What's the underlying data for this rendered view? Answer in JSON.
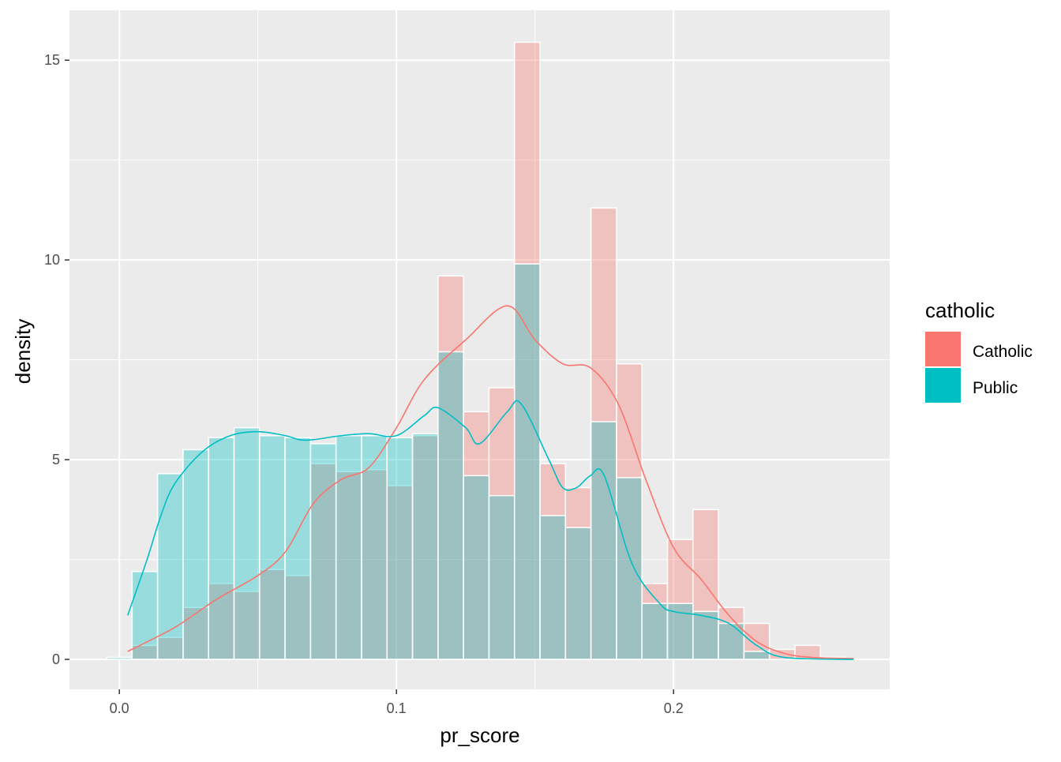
{
  "chart_data": {
    "type": "histogram",
    "xlabel": "pr_score",
    "ylabel": "density",
    "xlim": [
      -0.018,
      0.278
    ],
    "ylim": [
      -0.75,
      16.25
    ],
    "x_ticks": [
      0.0,
      0.1,
      0.2
    ],
    "x_tick_labels": [
      "0.0",
      "0.1",
      "0.2"
    ],
    "y_ticks": [
      0,
      5,
      10,
      15
    ],
    "y_tick_labels": [
      "0",
      "5",
      "10",
      "15"
    ],
    "bin_width": 0.0092,
    "bin_centers": [
      0.0,
      0.0092,
      0.0184,
      0.0276,
      0.0368,
      0.046,
      0.0552,
      0.0644,
      0.0736,
      0.0828,
      0.092,
      0.1012,
      0.1104,
      0.1196,
      0.1288,
      0.138,
      0.1472,
      0.1564,
      0.1656,
      0.1748,
      0.184,
      0.1932,
      0.2024,
      0.2116,
      0.2208,
      0.23,
      0.2392,
      0.2484,
      0.2576
    ],
    "grid": true,
    "legend": {
      "title": "catholic",
      "position": "right"
    },
    "series": [
      {
        "name": "Catholic",
        "color": "#F8766D",
        "values": [
          0.0,
          0.35,
          0.55,
          1.3,
          1.9,
          1.7,
          2.25,
          2.1,
          4.9,
          4.7,
          4.75,
          4.35,
          5.6,
          9.6,
          6.2,
          6.8,
          15.45,
          4.9,
          4.3,
          11.3,
          7.4,
          1.9,
          3.0,
          3.75,
          1.3,
          0.9,
          0.25,
          0.35,
          0.05
        ],
        "density_x": [
          0.003,
          0.02,
          0.035,
          0.05,
          0.06,
          0.07,
          0.08,
          0.09,
          0.1,
          0.11,
          0.125,
          0.14,
          0.15,
          0.16,
          0.17,
          0.18,
          0.19,
          0.2,
          0.21,
          0.22,
          0.23,
          0.24,
          0.25,
          0.265
        ],
        "density_y": [
          0.2,
          0.8,
          1.5,
          2.1,
          2.7,
          3.9,
          4.5,
          4.8,
          5.8,
          7.0,
          8.0,
          8.85,
          8.0,
          7.4,
          7.3,
          6.4,
          4.5,
          2.8,
          2.0,
          1.1,
          0.45,
          0.15,
          0.05,
          0.02
        ]
      },
      {
        "name": "Public",
        "color": "#00BFC4",
        "values": [
          0.05,
          2.2,
          4.65,
          5.25,
          5.55,
          5.8,
          5.6,
          5.55,
          5.4,
          5.6,
          5.6,
          5.55,
          5.65,
          7.7,
          4.6,
          4.1,
          9.9,
          3.6,
          3.3,
          5.95,
          4.55,
          1.4,
          1.4,
          1.2,
          0.9,
          0.2,
          0.0,
          0.0,
          0.0
        ],
        "density_x": [
          0.003,
          0.01,
          0.015,
          0.02,
          0.03,
          0.04,
          0.05,
          0.06,
          0.065,
          0.07,
          0.08,
          0.09,
          0.1,
          0.11,
          0.115,
          0.125,
          0.13,
          0.14,
          0.145,
          0.155,
          0.16,
          0.165,
          0.17,
          0.175,
          0.185,
          0.195,
          0.2,
          0.21,
          0.22,
          0.23,
          0.24,
          0.265
        ],
        "density_y": [
          1.1,
          2.5,
          3.6,
          4.4,
          5.2,
          5.6,
          5.7,
          5.6,
          5.5,
          5.5,
          5.6,
          5.65,
          5.6,
          6.1,
          6.3,
          5.8,
          5.4,
          6.2,
          6.4,
          5.0,
          4.3,
          4.3,
          4.6,
          4.6,
          2.4,
          1.4,
          1.2,
          1.1,
          0.9,
          0.35,
          0.05,
          0.0
        ]
      }
    ]
  }
}
